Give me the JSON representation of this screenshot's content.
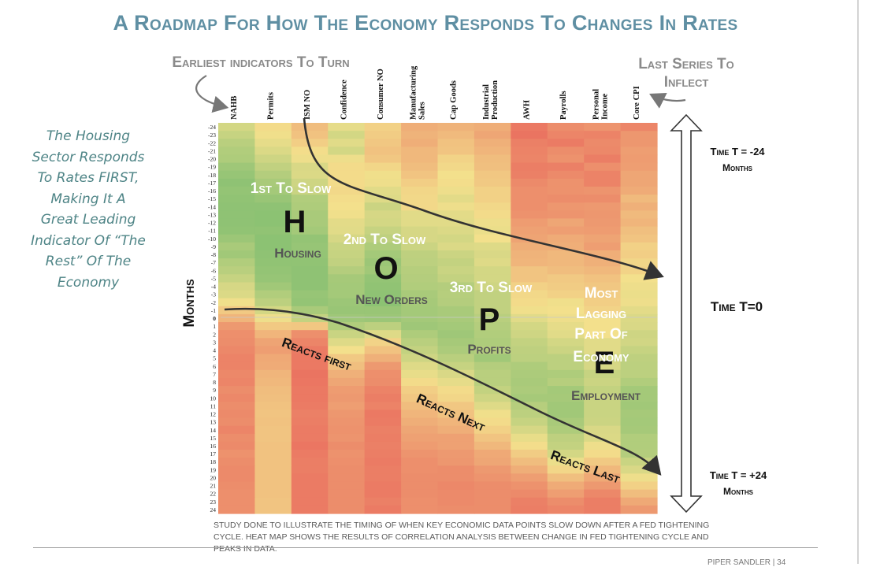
{
  "title": "A Roadmap For How The Economy Responds To Changes In Rates",
  "notes": {
    "earliest": "Earliest indicators To Turn",
    "last_series": [
      "Last Series To",
      "Inflect"
    ],
    "housing_lines": [
      "The Housing",
      "Sector Responds",
      "To Rates FIRST,",
      "Making It A",
      "Great Leading",
      "Indicator Of “The",
      "Rest” Of The",
      "Economy"
    ]
  },
  "hope": [
    {
      "order": "1st To Slow",
      "letter": "H",
      "name": "Housing"
    },
    {
      "order": "2nd To Slow",
      "letter": "O",
      "name": "New Orders"
    },
    {
      "order": "3rd To Slow",
      "letter": "P",
      "name": "Profits"
    },
    {
      "order": "Most Lagging Part Of Economy",
      "order_lines": [
        "Most",
        "Lagging",
        "Part Of",
        "Economy"
      ],
      "letter": "E",
      "name": "Employment"
    }
  ],
  "reactions": [
    "Reacts first",
    "Reacts Next",
    "Reacts Last"
  ],
  "right_labels": {
    "top": [
      "Time T = -24",
      "Months"
    ],
    "middle": "Time T=0",
    "bottom": [
      "Time T = +24",
      "Months"
    ]
  },
  "footnote": "Study done to illustrate the timing of when key economic data points slow down after a Fed tightening cycle. Heat map shows the results of correlation analysis between change in Fed tightening cycle and peaks in data.",
  "corner_text": "PIPER SANDLER | 34",
  "colors": {
    "title": "#5f8fa3",
    "script_note": "#4e8486",
    "heat_red": "#e9625a",
    "heat_yellow": "#f3e08c",
    "heat_green": "#6fb96c"
  },
  "chart_data": {
    "type": "heatmap",
    "columns": [
      "NAHB",
      "Permits",
      "ISM NO",
      "Confidence",
      "Consumer NO",
      "Manufacturing Sales",
      "Cap Goods",
      "Industrial Production",
      "AWH",
      "Payrolls",
      "Personal Income",
      "Core CPI"
    ],
    "rows": [
      -24,
      -23,
      -22,
      -21,
      -20,
      -19,
      -18,
      -17,
      -16,
      -15,
      -14,
      -13,
      -12,
      -11,
      -10,
      -9,
      -8,
      -7,
      -6,
      -5,
      -4,
      -3,
      -2,
      -1,
      0,
      1,
      2,
      3,
      4,
      5,
      6,
      7,
      8,
      9,
      10,
      11,
      12,
      13,
      14,
      15,
      16,
      17,
      18,
      19,
      20,
      21,
      22,
      23,
      24
    ],
    "ylabel": "Months",
    "color_scale": "red = low, yellow = mid, green = high correlation",
    "values": [
      [
        0.62,
        0.48,
        0.36,
        0.55,
        0.44,
        0.3,
        0.32,
        0.3,
        0.09,
        0.17,
        0.2,
        0.14
      ],
      [
        0.67,
        0.51,
        0.38,
        0.62,
        0.42,
        0.32,
        0.35,
        0.27,
        0.07,
        0.14,
        0.13,
        0.21
      ],
      [
        0.72,
        0.55,
        0.43,
        0.57,
        0.4,
        0.3,
        0.38,
        0.31,
        0.12,
        0.1,
        0.16,
        0.21
      ],
      [
        0.75,
        0.59,
        0.49,
        0.62,
        0.38,
        0.34,
        0.39,
        0.33,
        0.13,
        0.17,
        0.15,
        0.24
      ],
      [
        0.76,
        0.64,
        0.52,
        0.52,
        0.4,
        0.34,
        0.45,
        0.36,
        0.14,
        0.19,
        0.11,
        0.23
      ],
      [
        0.82,
        0.69,
        0.6,
        0.48,
        0.46,
        0.36,
        0.47,
        0.37,
        0.11,
        0.12,
        0.18,
        0.24
      ],
      [
        0.85,
        0.74,
        0.59,
        0.48,
        0.51,
        0.39,
        0.5,
        0.4,
        0.12,
        0.16,
        0.13,
        0.27
      ],
      [
        0.88,
        0.78,
        0.64,
        0.48,
        0.52,
        0.43,
        0.49,
        0.41,
        0.16,
        0.19,
        0.13,
        0.27
      ],
      [
        0.86,
        0.8,
        0.66,
        0.47,
        0.57,
        0.46,
        0.52,
        0.44,
        0.18,
        0.19,
        0.2,
        0.29
      ],
      [
        0.87,
        0.84,
        0.75,
        0.49,
        0.58,
        0.47,
        0.56,
        0.44,
        0.18,
        0.17,
        0.17,
        0.35
      ],
      [
        0.88,
        0.88,
        0.76,
        0.5,
        0.65,
        0.47,
        0.52,
        0.47,
        0.18,
        0.21,
        0.22,
        0.31
      ],
      [
        0.88,
        0.89,
        0.78,
        0.51,
        0.61,
        0.57,
        0.56,
        0.48,
        0.19,
        0.2,
        0.21,
        0.35
      ],
      [
        0.88,
        0.89,
        0.78,
        0.56,
        0.62,
        0.57,
        0.57,
        0.52,
        0.23,
        0.27,
        0.22,
        0.33
      ],
      [
        0.87,
        0.87,
        0.8,
        0.57,
        0.67,
        0.61,
        0.59,
        0.53,
        0.25,
        0.24,
        0.23,
        0.37
      ],
      [
        0.83,
        0.89,
        0.86,
        0.61,
        0.7,
        0.61,
        0.62,
        0.5,
        0.26,
        0.29,
        0.26,
        0.39
      ],
      [
        0.78,
        0.89,
        0.85,
        0.66,
        0.76,
        0.65,
        0.59,
        0.58,
        0.3,
        0.3,
        0.24,
        0.44
      ],
      [
        0.81,
        0.88,
        0.86,
        0.67,
        0.8,
        0.7,
        0.65,
        0.6,
        0.32,
        0.34,
        0.3,
        0.43
      ],
      [
        0.75,
        0.87,
        0.87,
        0.69,
        0.83,
        0.71,
        0.68,
        0.58,
        0.33,
        0.34,
        0.31,
        0.46
      ],
      [
        0.72,
        0.86,
        0.88,
        0.74,
        0.81,
        0.73,
        0.66,
        0.62,
        0.39,
        0.36,
        0.34,
        0.45
      ],
      [
        0.67,
        0.85,
        0.88,
        0.79,
        0.86,
        0.74,
        0.68,
        0.62,
        0.39,
        0.41,
        0.38,
        0.5
      ],
      [
        0.61,
        0.81,
        0.88,
        0.8,
        0.87,
        0.75,
        0.74,
        0.64,
        0.44,
        0.42,
        0.4,
        0.52
      ],
      [
        0.59,
        0.75,
        0.85,
        0.8,
        0.88,
        0.78,
        0.73,
        0.69,
        0.47,
        0.44,
        0.42,
        0.53
      ],
      [
        0.51,
        0.71,
        0.86,
        0.83,
        0.89,
        0.79,
        0.74,
        0.69,
        0.48,
        0.51,
        0.43,
        0.52
      ],
      [
        0.41,
        0.62,
        0.78,
        0.84,
        0.84,
        0.8,
        0.78,
        0.69,
        0.51,
        0.5,
        0.45,
        0.56
      ],
      [
        0.33,
        0.52,
        0.68,
        0.82,
        0.83,
        0.8,
        0.78,
        0.72,
        0.57,
        0.52,
        0.5,
        0.59
      ],
      [
        0.22,
        0.41,
        0.4,
        0.75,
        0.71,
        0.82,
        0.8,
        0.74,
        0.62,
        0.55,
        0.5,
        0.6
      ],
      [
        0.18,
        0.33,
        0.18,
        0.66,
        0.58,
        0.76,
        0.82,
        0.75,
        0.64,
        0.57,
        0.5,
        0.64
      ],
      [
        0.17,
        0.26,
        0.14,
        0.58,
        0.45,
        0.72,
        0.79,
        0.76,
        0.68,
        0.62,
        0.57,
        0.63
      ],
      [
        0.15,
        0.24,
        0.1,
        0.5,
        0.38,
        0.68,
        0.77,
        0.74,
        0.7,
        0.65,
        0.57,
        0.67
      ],
      [
        0.13,
        0.28,
        0.09,
        0.41,
        0.31,
        0.64,
        0.72,
        0.81,
        0.71,
        0.71,
        0.63,
        0.7
      ],
      [
        0.13,
        0.29,
        0.09,
        0.37,
        0.22,
        0.58,
        0.67,
        0.74,
        0.76,
        0.71,
        0.61,
        0.71
      ],
      [
        0.15,
        0.33,
        0.07,
        0.31,
        0.18,
        0.54,
        0.6,
        0.72,
        0.77,
        0.76,
        0.67,
        0.71
      ],
      [
        0.14,
        0.34,
        0.08,
        0.27,
        0.17,
        0.48,
        0.55,
        0.72,
        0.78,
        0.73,
        0.65,
        0.75
      ],
      [
        0.17,
        0.36,
        0.09,
        0.23,
        0.13,
        0.43,
        0.48,
        0.68,
        0.77,
        0.8,
        0.68,
        0.8
      ],
      [
        0.15,
        0.37,
        0.09,
        0.22,
        0.11,
        0.4,
        0.46,
        0.64,
        0.79,
        0.79,
        0.66,
        0.8
      ],
      [
        0.17,
        0.38,
        0.1,
        0.24,
        0.13,
        0.36,
        0.4,
        0.58,
        0.73,
        0.81,
        0.66,
        0.81
      ],
      [
        0.16,
        0.39,
        0.12,
        0.21,
        0.09,
        0.33,
        0.38,
        0.51,
        0.71,
        0.81,
        0.66,
        0.79
      ],
      [
        0.17,
        0.38,
        0.11,
        0.2,
        0.1,
        0.3,
        0.33,
        0.48,
        0.67,
        0.78,
        0.65,
        0.8
      ],
      [
        0.14,
        0.39,
        0.1,
        0.19,
        0.12,
        0.27,
        0.3,
        0.44,
        0.61,
        0.76,
        0.6,
        0.79
      ],
      [
        0.17,
        0.39,
        0.1,
        0.2,
        0.11,
        0.25,
        0.25,
        0.39,
        0.54,
        0.7,
        0.59,
        0.75
      ],
      [
        0.16,
        0.38,
        0.08,
        0.17,
        0.12,
        0.23,
        0.25,
        0.34,
        0.49,
        0.68,
        0.52,
        0.75
      ],
      [
        0.19,
        0.38,
        0.1,
        0.19,
        0.11,
        0.2,
        0.22,
        0.28,
        0.42,
        0.62,
        0.48,
        0.74
      ],
      [
        0.17,
        0.38,
        0.11,
        0.18,
        0.1,
        0.18,
        0.21,
        0.27,
        0.36,
        0.53,
        0.41,
        0.66
      ],
      [
        0.16,
        0.38,
        0.11,
        0.17,
        0.11,
        0.18,
        0.17,
        0.22,
        0.3,
        0.46,
        0.34,
        0.6
      ],
      [
        0.16,
        0.38,
        0.1,
        0.17,
        0.11,
        0.17,
        0.17,
        0.2,
        0.24,
        0.37,
        0.28,
        0.52
      ],
      [
        0.17,
        0.38,
        0.1,
        0.17,
        0.1,
        0.17,
        0.15,
        0.17,
        0.19,
        0.29,
        0.22,
        0.44
      ],
      [
        0.18,
        0.38,
        0.1,
        0.17,
        0.1,
        0.17,
        0.16,
        0.17,
        0.16,
        0.24,
        0.15,
        0.36
      ],
      [
        0.18,
        0.39,
        0.1,
        0.17,
        0.12,
        0.18,
        0.16,
        0.17,
        0.12,
        0.17,
        0.11,
        0.28
      ],
      [
        0.18,
        0.39,
        0.1,
        0.17,
        0.1,
        0.18,
        0.17,
        0.17,
        0.11,
        0.14,
        0.11,
        0.22
      ]
    ]
  }
}
